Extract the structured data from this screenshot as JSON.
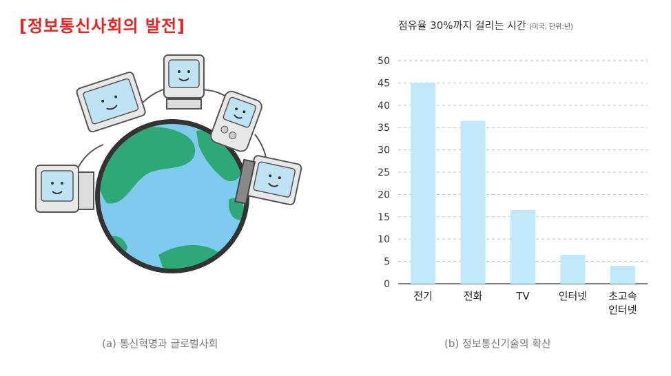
{
  "heading": "[정보통신사회의 발전]",
  "left_panel": {
    "caption": "(a) 통신혁명과 글로벌사회"
  },
  "right_panel": {
    "caption": "(b) 정보통신기술의 확산"
  },
  "colors": {
    "heading": "#e8231f",
    "bar": "#bfe9fb",
    "grid": "#bfbfbf",
    "ocean": "#7fcbf0",
    "land": "#2fa877",
    "globe_rim": "#333333"
  },
  "chart_data": {
    "type": "bar",
    "title": "점유율 30%까지 걸리는 시간",
    "title_note": "(미국, 단위:년)",
    "categories": [
      "전기",
      "전화",
      "TV",
      "인터넷",
      "초고속\n인터넷"
    ],
    "values": [
      45,
      36.5,
      16.5,
      6.5,
      4
    ],
    "ylim": [
      0,
      50
    ],
    "yticks": [
      0,
      5,
      10,
      15,
      20,
      25,
      30,
      35,
      40,
      45,
      50
    ],
    "grid": true,
    "xlabel": "",
    "ylabel": ""
  }
}
